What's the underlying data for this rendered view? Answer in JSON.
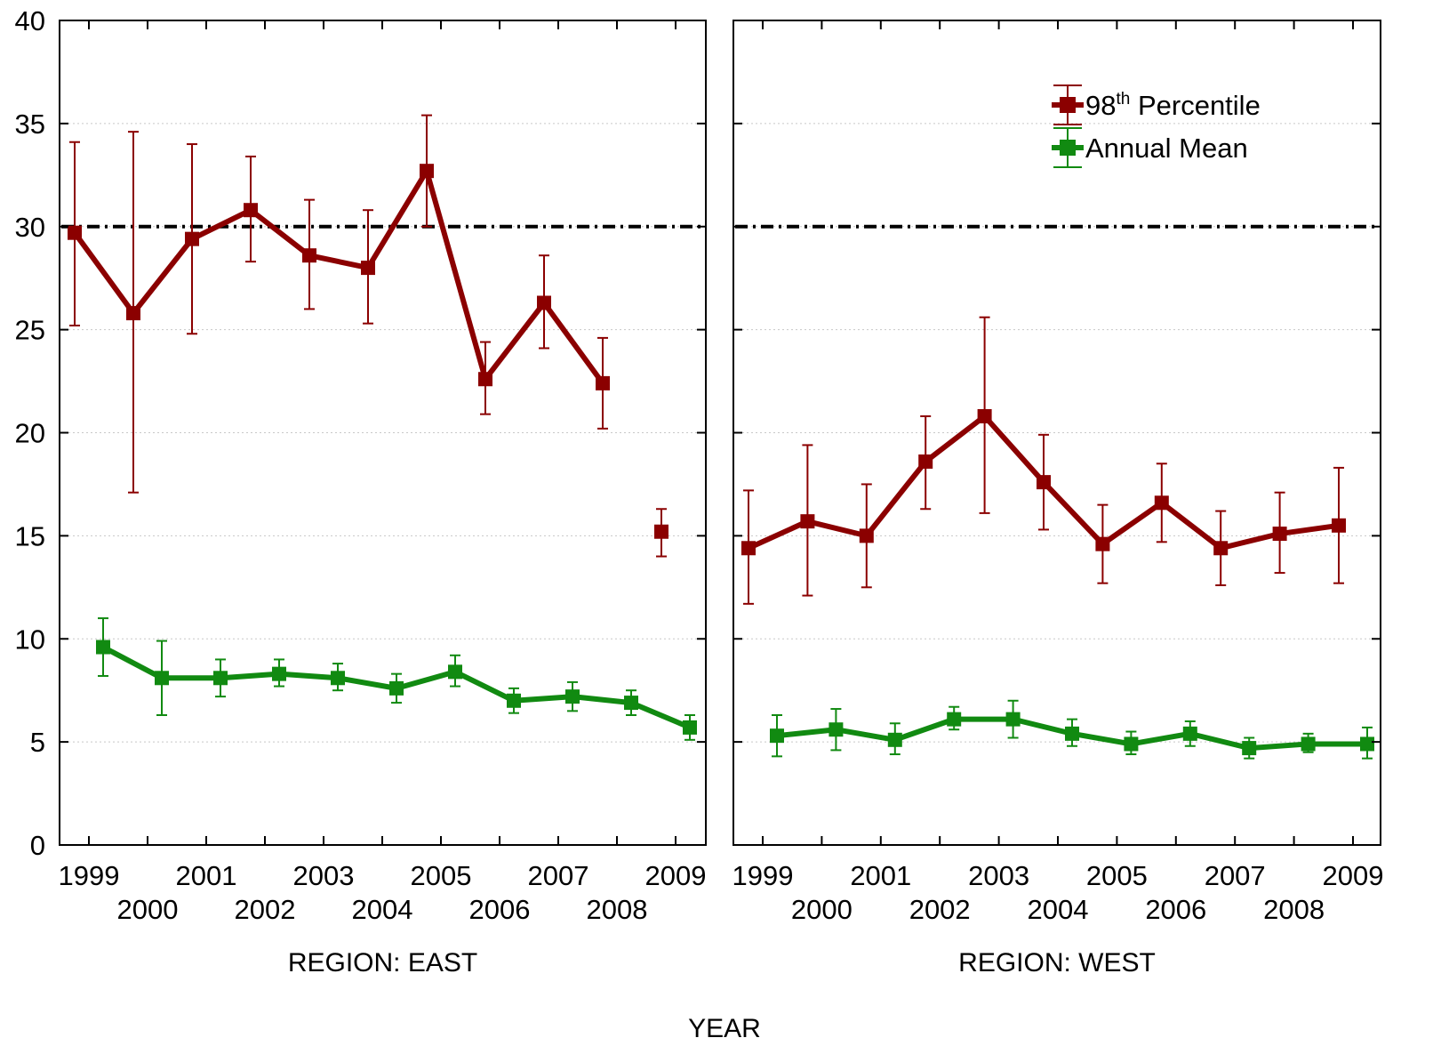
{
  "chart_data": {
    "type": "line",
    "xlabel": "YEAR",
    "ylabel": "",
    "ylim": [
      0,
      40
    ],
    "yticks": [
      0,
      5,
      10,
      15,
      20,
      25,
      30,
      35,
      40
    ],
    "years": [
      1999,
      2000,
      2001,
      2002,
      2003,
      2004,
      2005,
      2006,
      2007,
      2008,
      2009
    ],
    "xtick_labels": [
      "1999",
      "2000",
      "2001",
      "2002",
      "2003",
      "2004",
      "2005",
      "2006",
      "2007",
      "2008",
      "2009"
    ],
    "grid": "horizontal dotted",
    "reference_line": {
      "y": 30,
      "style": "dash-dot",
      "color": "#000000"
    },
    "legend": {
      "placement": "top-right of REGION: WEST panel",
      "items": [
        {
          "label_main": "98",
          "label_sup": "th",
          "label_rest": " Percentile",
          "color": "#8b0000",
          "marker": "square-with-errorbar"
        },
        {
          "label": "Annual Mean",
          "color": "#118a11",
          "marker": "square-with-errorbar"
        }
      ]
    },
    "panels": [
      {
        "title": "REGION: EAST",
        "series": [
          {
            "name": "98th Percentile",
            "color": "#8b0000",
            "x": [
              1999,
              2000,
              2001,
              2002,
              2003,
              2004,
              2005,
              2006,
              2007,
              2008
            ],
            "y": [
              29.7,
              25.8,
              29.4,
              30.8,
              28.6,
              28.0,
              32.7,
              22.6,
              26.3,
              22.4
            ],
            "err_low": [
              25.2,
              17.1,
              24.8,
              28.3,
              26.0,
              25.3,
              30.0,
              20.9,
              24.1,
              20.2
            ],
            "err_high": [
              34.1,
              34.6,
              34.0,
              33.4,
              31.3,
              30.8,
              35.4,
              24.4,
              28.6,
              24.6
            ]
          },
          {
            "name": "Annual Mean",
            "color": "#118a11",
            "x": [
              1999,
              2000,
              2001,
              2002,
              2003,
              2004,
              2005,
              2006,
              2007,
              2008,
              2009
            ],
            "y": [
              9.6,
              8.1,
              8.1,
              8.3,
              8.1,
              7.6,
              8.4,
              7.0,
              7.2,
              6.9,
              5.7
            ],
            "err_low": [
              8.2,
              6.3,
              7.2,
              7.7,
              7.5,
              6.9,
              7.7,
              6.4,
              6.5,
              6.3,
              5.1
            ],
            "err_high": [
              11.0,
              9.9,
              9.0,
              9.0,
              8.8,
              8.3,
              9.2,
              7.6,
              7.9,
              7.5,
              6.3
            ]
          },
          {
            "name": "98th Percentile (2009)",
            "color": "#8b0000",
            "x": [
              2009
            ],
            "y": [
              15.2
            ],
            "err_low": [
              14.0
            ],
            "err_high": [
              16.3
            ]
          }
        ]
      },
      {
        "title": "REGION: WEST",
        "series": [
          {
            "name": "98th Percentile",
            "color": "#8b0000",
            "x": [
              1999,
              2000,
              2001,
              2002,
              2003,
              2004,
              2005,
              2006,
              2007,
              2008,
              2009
            ],
            "y": [
              14.4,
              15.7,
              15.0,
              18.6,
              20.8,
              17.6,
              14.6,
              16.6,
              14.4,
              15.1,
              15.5
            ],
            "err_low": [
              11.7,
              12.1,
              12.5,
              16.3,
              16.1,
              15.3,
              12.7,
              14.7,
              12.6,
              13.2,
              12.7
            ],
            "err_high": [
              17.2,
              19.4,
              17.5,
              20.8,
              25.6,
              19.9,
              16.5,
              18.5,
              16.2,
              17.1,
              18.3
            ]
          },
          {
            "name": "Annual Mean",
            "color": "#118a11",
            "x": [
              1999,
              2000,
              2001,
              2002,
              2003,
              2004,
              2005,
              2006,
              2007,
              2008,
              2009
            ],
            "y": [
              5.3,
              5.6,
              5.1,
              6.1,
              6.1,
              5.4,
              4.9,
              5.4,
              4.7,
              4.9,
              4.9
            ],
            "err_low": [
              4.3,
              4.6,
              4.4,
              5.6,
              5.2,
              4.8,
              4.4,
              4.8,
              4.2,
              4.5,
              4.2
            ],
            "err_high": [
              6.3,
              6.6,
              5.9,
              6.7,
              7.0,
              6.1,
              5.5,
              6.0,
              5.2,
              5.4,
              5.7
            ]
          }
        ]
      }
    ]
  }
}
